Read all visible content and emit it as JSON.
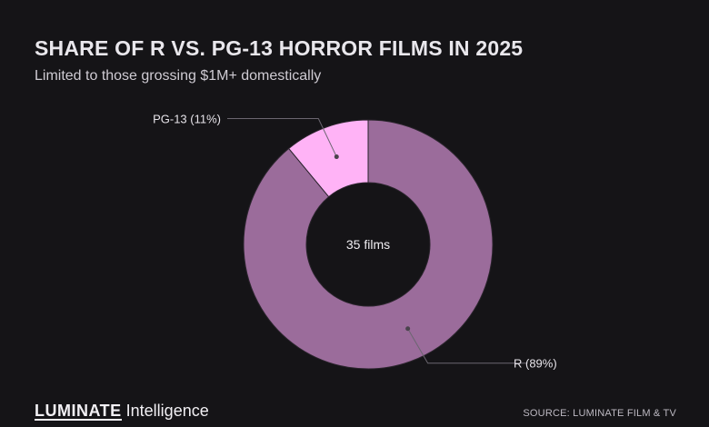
{
  "header": {
    "title": "SHARE OF R VS. PG-13 HORROR FILMS IN 2025",
    "subtitle": "Limited to those grossing $1M+ domestically"
  },
  "chart_data": {
    "type": "pie",
    "variant": "donut",
    "center_label": "35 films",
    "slices": [
      {
        "label": "R (89%)",
        "value": 89,
        "color": "#9b6c9b"
      },
      {
        "label": "PG-13 (11%)",
        "value": 11,
        "color": "#ffb3f6"
      }
    ],
    "start": "12 o'clock",
    "direction": "clockwise"
  },
  "footer": {
    "brand": "LUMINATE",
    "brand_suffix": "Intelligence",
    "source": "SOURCE: LUMINATE FILM & TV"
  },
  "colors": {
    "background": "#151417",
    "slice_border": "#2a242c",
    "leader_line": "#6b6670",
    "center_hole": "#151417"
  }
}
